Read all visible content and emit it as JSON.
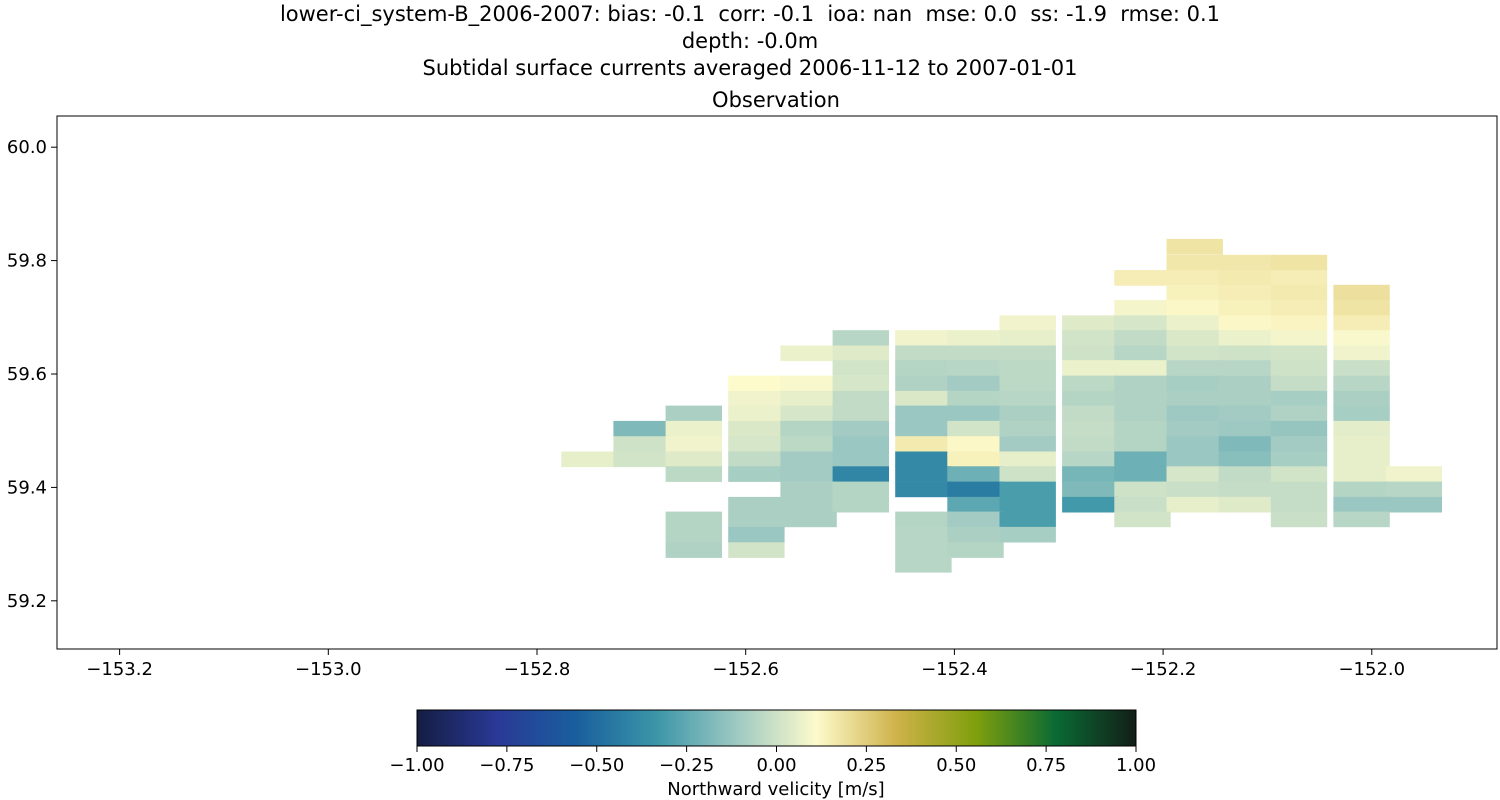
{
  "header": {
    "line1": "lower-ci_system-B_2006-2007: bias: -0.1  corr: -0.1  ioa: nan  mse: 0.0  ss: -1.9  rmse: 0.1",
    "line2": "depth: -0.0m",
    "line3": "Subtidal surface currents averaged 2006-11-12 to 2007-01-01"
  },
  "chart_data": {
    "type": "heatmap",
    "title": "Observation",
    "xlim": [
      -153.26,
      -151.88
    ],
    "ylim": [
      59.115,
      60.055
    ],
    "x_ticks": [
      -153.2,
      -153.0,
      -152.8,
      -152.6,
      -152.4,
      -152.2,
      -152.0
    ],
    "x_tick_labels": [
      "−153.2",
      "−153.0",
      "−152.8",
      "−152.6",
      "−152.4",
      "−152.2",
      "−152.0"
    ],
    "y_ticks": [
      59.2,
      59.4,
      59.6,
      59.8,
      60.0
    ],
    "y_tick_labels": [
      "59.2",
      "59.4",
      "59.6",
      "59.8",
      "60.0"
    ],
    "cell_width": 0.0535,
    "cell_height": 0.0265,
    "colorbar": {
      "label": "Northward velicity [m/s]",
      "vmin": -1.0,
      "vmax": 1.0,
      "ticks": [
        -1.0,
        -0.75,
        -0.5,
        -0.25,
        0.0,
        0.25,
        0.5,
        0.75,
        1.0
      ],
      "tick_labels": [
        "−1.00",
        "−0.75",
        "−0.50",
        "−0.25",
        "0.00",
        "0.25",
        "0.50",
        "0.75",
        "1.00"
      ],
      "stops": [
        "#141d43",
        "#2a3996",
        "#195f9e",
        "#3b96a8",
        "#9ec9c2",
        "#fdfacc",
        "#cfb24a",
        "#7f9f0c",
        "#0a6a34",
        "#131e17"
      ]
    },
    "cells": [
      {
        "x": -152.17,
        "y": 59.825,
        "v": 0.18
      },
      {
        "x": -152.17,
        "y": 59.797,
        "v": 0.17
      },
      {
        "x": -152.12,
        "y": 59.797,
        "v": 0.17
      },
      {
        "x": -152.07,
        "y": 59.797,
        "v": 0.18
      },
      {
        "x": -152.22,
        "y": 59.77,
        "v": 0.15
      },
      {
        "x": -152.17,
        "y": 59.77,
        "v": 0.15
      },
      {
        "x": -152.12,
        "y": 59.77,
        "v": 0.16
      },
      {
        "x": -152.07,
        "y": 59.77,
        "v": 0.15
      },
      {
        "x": -152.17,
        "y": 59.744,
        "v": 0.14
      },
      {
        "x": -152.12,
        "y": 59.744,
        "v": 0.15
      },
      {
        "x": -152.07,
        "y": 59.744,
        "v": 0.16
      },
      {
        "x": -152.01,
        "y": 59.744,
        "v": 0.19
      },
      {
        "x": -152.22,
        "y": 59.717,
        "v": 0.09
      },
      {
        "x": -152.17,
        "y": 59.717,
        "v": 0.12
      },
      {
        "x": -152.12,
        "y": 59.717,
        "v": 0.14
      },
      {
        "x": -152.07,
        "y": 59.717,
        "v": 0.15
      },
      {
        "x": -152.01,
        "y": 59.717,
        "v": 0.18
      },
      {
        "x": -152.33,
        "y": 59.69,
        "v": 0.08
      },
      {
        "x": -152.27,
        "y": 59.69,
        "v": 0.04
      },
      {
        "x": -152.22,
        "y": 59.69,
        "v": 0.02
      },
      {
        "x": -152.17,
        "y": 59.69,
        "v": 0.07
      },
      {
        "x": -152.12,
        "y": 59.69,
        "v": 0.12
      },
      {
        "x": -152.07,
        "y": 59.69,
        "v": 0.13
      },
      {
        "x": -152.01,
        "y": 59.69,
        "v": 0.15
      },
      {
        "x": -152.49,
        "y": 59.664,
        "v": -0.05
      },
      {
        "x": -152.43,
        "y": 59.664,
        "v": 0.08
      },
      {
        "x": -152.38,
        "y": 59.664,
        "v": 0.07
      },
      {
        "x": -152.33,
        "y": 59.664,
        "v": 0.06
      },
      {
        "x": -152.27,
        "y": 59.664,
        "v": 0.01
      },
      {
        "x": -152.22,
        "y": 59.664,
        "v": -0.03
      },
      {
        "x": -152.17,
        "y": 59.664,
        "v": 0.03
      },
      {
        "x": -152.12,
        "y": 59.664,
        "v": 0.07
      },
      {
        "x": -152.07,
        "y": 59.664,
        "v": 0.09
      },
      {
        "x": -152.01,
        "y": 59.664,
        "v": 0.1
      },
      {
        "x": -152.54,
        "y": 59.637,
        "v": 0.07
      },
      {
        "x": -152.49,
        "y": 59.637,
        "v": 0.04
      },
      {
        "x": -152.43,
        "y": 59.637,
        "v": -0.03
      },
      {
        "x": -152.38,
        "y": 59.637,
        "v": -0.03
      },
      {
        "x": -152.33,
        "y": 59.637,
        "v": -0.03
      },
      {
        "x": -152.27,
        "y": 59.637,
        "v": 0.0
      },
      {
        "x": -152.22,
        "y": 59.637,
        "v": -0.05
      },
      {
        "x": -152.17,
        "y": 59.637,
        "v": 0.01
      },
      {
        "x": -152.12,
        "y": 59.637,
        "v": 0.0
      },
      {
        "x": -152.07,
        "y": 59.637,
        "v": 0.01
      },
      {
        "x": -152.01,
        "y": 59.637,
        "v": 0.08
      },
      {
        "x": -152.49,
        "y": 59.611,
        "v": 0.01
      },
      {
        "x": -152.43,
        "y": 59.611,
        "v": -0.06
      },
      {
        "x": -152.38,
        "y": 59.611,
        "v": -0.05
      },
      {
        "x": -152.33,
        "y": 59.611,
        "v": -0.04
      },
      {
        "x": -152.27,
        "y": 59.611,
        "v": 0.07
      },
      {
        "x": -152.22,
        "y": 59.611,
        "v": 0.07
      },
      {
        "x": -152.17,
        "y": 59.611,
        "v": -0.05
      },
      {
        "x": -152.12,
        "y": 59.611,
        "v": -0.05
      },
      {
        "x": -152.07,
        "y": 59.611,
        "v": 0.0
      },
      {
        "x": -152.01,
        "y": 59.611,
        "v": -0.01
      },
      {
        "x": -152.59,
        "y": 59.584,
        "v": 0.11
      },
      {
        "x": -152.54,
        "y": 59.584,
        "v": 0.1
      },
      {
        "x": -152.49,
        "y": 59.584,
        "v": 0.02
      },
      {
        "x": -152.43,
        "y": 59.584,
        "v": -0.07
      },
      {
        "x": -152.38,
        "y": 59.584,
        "v": -0.1
      },
      {
        "x": -152.33,
        "y": 59.584,
        "v": -0.04
      },
      {
        "x": -152.27,
        "y": 59.584,
        "v": -0.04
      },
      {
        "x": -152.22,
        "y": 59.584,
        "v": -0.07
      },
      {
        "x": -152.17,
        "y": 59.584,
        "v": -0.09
      },
      {
        "x": -152.12,
        "y": 59.584,
        "v": -0.08
      },
      {
        "x": -152.07,
        "y": 59.584,
        "v": -0.02
      },
      {
        "x": -152.01,
        "y": 59.584,
        "v": -0.05
      },
      {
        "x": -152.59,
        "y": 59.557,
        "v": 0.08
      },
      {
        "x": -152.54,
        "y": 59.557,
        "v": 0.06
      },
      {
        "x": -152.49,
        "y": 59.557,
        "v": -0.03
      },
      {
        "x": -152.43,
        "y": 59.557,
        "v": 0.03
      },
      {
        "x": -152.38,
        "y": 59.557,
        "v": -0.06
      },
      {
        "x": -152.33,
        "y": 59.557,
        "v": -0.05
      },
      {
        "x": -152.27,
        "y": 59.557,
        "v": -0.06
      },
      {
        "x": -152.22,
        "y": 59.557,
        "v": -0.07
      },
      {
        "x": -152.17,
        "y": 59.557,
        "v": -0.08
      },
      {
        "x": -152.12,
        "y": 59.557,
        "v": -0.08
      },
      {
        "x": -152.07,
        "y": 59.557,
        "v": -0.09
      },
      {
        "x": -152.01,
        "y": 59.557,
        "v": -0.08
      },
      {
        "x": -152.65,
        "y": 59.531,
        "v": -0.08
      },
      {
        "x": -152.59,
        "y": 59.531,
        "v": 0.07
      },
      {
        "x": -152.54,
        "y": 59.531,
        "v": 0.02
      },
      {
        "x": -152.49,
        "y": 59.531,
        "v": -0.03
      },
      {
        "x": -152.43,
        "y": 59.531,
        "v": -0.12
      },
      {
        "x": -152.38,
        "y": 59.531,
        "v": -0.12
      },
      {
        "x": -152.33,
        "y": 59.531,
        "v": -0.08
      },
      {
        "x": -152.27,
        "y": 59.531,
        "v": -0.03
      },
      {
        "x": -152.22,
        "y": 59.531,
        "v": -0.07
      },
      {
        "x": -152.17,
        "y": 59.531,
        "v": -0.11
      },
      {
        "x": -152.12,
        "y": 59.531,
        "v": -0.1
      },
      {
        "x": -152.07,
        "y": 59.531,
        "v": -0.07
      },
      {
        "x": -152.01,
        "y": 59.531,
        "v": -0.09
      },
      {
        "x": -152.7,
        "y": 59.504,
        "v": -0.18
      },
      {
        "x": -152.65,
        "y": 59.504,
        "v": 0.07
      },
      {
        "x": -152.59,
        "y": 59.504,
        "v": 0.03
      },
      {
        "x": -152.54,
        "y": 59.504,
        "v": -0.06
      },
      {
        "x": -152.49,
        "y": 59.504,
        "v": -0.1
      },
      {
        "x": -152.43,
        "y": 59.504,
        "v": -0.12
      },
      {
        "x": -152.38,
        "y": 59.504,
        "v": 0.01
      },
      {
        "x": -152.33,
        "y": 59.504,
        "v": -0.07
      },
      {
        "x": -152.27,
        "y": 59.504,
        "v": -0.02
      },
      {
        "x": -152.22,
        "y": 59.504,
        "v": -0.06
      },
      {
        "x": -152.17,
        "y": 59.504,
        "v": -0.1
      },
      {
        "x": -152.12,
        "y": 59.504,
        "v": -0.11
      },
      {
        "x": -152.07,
        "y": 59.504,
        "v": -0.13
      },
      {
        "x": -152.01,
        "y": 59.504,
        "v": 0.05
      },
      {
        "x": -152.7,
        "y": 59.477,
        "v": 0.0
      },
      {
        "x": -152.65,
        "y": 59.477,
        "v": 0.08
      },
      {
        "x": -152.59,
        "y": 59.477,
        "v": 0.02
      },
      {
        "x": -152.54,
        "y": 59.477,
        "v": -0.04
      },
      {
        "x": -152.49,
        "y": 59.477,
        "v": -0.12
      },
      {
        "x": -152.43,
        "y": 59.477,
        "v": 0.16
      },
      {
        "x": -152.38,
        "y": 59.477,
        "v": 0.12
      },
      {
        "x": -152.33,
        "y": 59.477,
        "v": -0.1
      },
      {
        "x": -152.27,
        "y": 59.477,
        "v": -0.03
      },
      {
        "x": -152.22,
        "y": 59.477,
        "v": -0.06
      },
      {
        "x": -152.17,
        "y": 59.477,
        "v": -0.12
      },
      {
        "x": -152.12,
        "y": 59.477,
        "v": -0.18
      },
      {
        "x": -152.07,
        "y": 59.477,
        "v": -0.1
      },
      {
        "x": -152.01,
        "y": 59.477,
        "v": 0.06
      },
      {
        "x": -152.75,
        "y": 59.45,
        "v": 0.06
      },
      {
        "x": -152.7,
        "y": 59.45,
        "v": 0.01
      },
      {
        "x": -152.65,
        "y": 59.45,
        "v": 0.04
      },
      {
        "x": -152.59,
        "y": 59.45,
        "v": -0.03
      },
      {
        "x": -152.54,
        "y": 59.45,
        "v": -0.1
      },
      {
        "x": -152.49,
        "y": 59.45,
        "v": -0.12
      },
      {
        "x": -152.43,
        "y": 59.45,
        "v": -0.38
      },
      {
        "x": -152.38,
        "y": 59.45,
        "v": 0.14
      },
      {
        "x": -152.33,
        "y": 59.45,
        "v": 0.06
      },
      {
        "x": -152.27,
        "y": 59.45,
        "v": -0.05
      },
      {
        "x": -152.22,
        "y": 59.45,
        "v": -0.22
      },
      {
        "x": -152.17,
        "y": 59.45,
        "v": -0.12
      },
      {
        "x": -152.12,
        "y": 59.45,
        "v": -0.16
      },
      {
        "x": -152.07,
        "y": 59.45,
        "v": -0.09
      },
      {
        "x": -152.01,
        "y": 59.45,
        "v": 0.06
      },
      {
        "x": -152.65,
        "y": 59.424,
        "v": -0.04
      },
      {
        "x": -152.59,
        "y": 59.424,
        "v": -0.09
      },
      {
        "x": -152.54,
        "y": 59.424,
        "v": -0.1
      },
      {
        "x": -152.49,
        "y": 59.424,
        "v": -0.4
      },
      {
        "x": -152.43,
        "y": 59.424,
        "v": -0.38
      },
      {
        "x": -152.38,
        "y": 59.424,
        "v": -0.22
      },
      {
        "x": -152.33,
        "y": 59.424,
        "v": 0.0
      },
      {
        "x": -152.27,
        "y": 59.424,
        "v": -0.2
      },
      {
        "x": -152.22,
        "y": 59.424,
        "v": -0.22
      },
      {
        "x": -152.17,
        "y": 59.424,
        "v": 0.02
      },
      {
        "x": -152.12,
        "y": 59.424,
        "v": -0.03
      },
      {
        "x": -152.07,
        "y": 59.424,
        "v": 0.01
      },
      {
        "x": -152.01,
        "y": 59.424,
        "v": 0.06
      },
      {
        "x": -151.96,
        "y": 59.424,
        "v": 0.08
      },
      {
        "x": -152.54,
        "y": 59.397,
        "v": -0.08
      },
      {
        "x": -152.49,
        "y": 59.397,
        "v": -0.06
      },
      {
        "x": -152.43,
        "y": 59.397,
        "v": -0.38
      },
      {
        "x": -152.38,
        "y": 59.397,
        "v": -0.44
      },
      {
        "x": -152.33,
        "y": 59.397,
        "v": -0.3
      },
      {
        "x": -152.27,
        "y": 59.397,
        "v": -0.18
      },
      {
        "x": -152.22,
        "y": 59.397,
        "v": 0.0
      },
      {
        "x": -152.17,
        "y": 59.397,
        "v": -0.01
      },
      {
        "x": -152.12,
        "y": 59.397,
        "v": -0.02
      },
      {
        "x": -152.07,
        "y": 59.397,
        "v": -0.02
      },
      {
        "x": -152.01,
        "y": 59.397,
        "v": -0.06
      },
      {
        "x": -151.96,
        "y": 59.397,
        "v": -0.05
      },
      {
        "x": -152.59,
        "y": 59.37,
        "v": -0.08
      },
      {
        "x": -152.54,
        "y": 59.37,
        "v": -0.08
      },
      {
        "x": -152.49,
        "y": 59.37,
        "v": -0.06
      },
      {
        "x": -152.38,
        "y": 59.37,
        "v": -0.26
      },
      {
        "x": -152.33,
        "y": 59.37,
        "v": -0.3
      },
      {
        "x": -152.27,
        "y": 59.37,
        "v": -0.32
      },
      {
        "x": -152.22,
        "y": 59.37,
        "v": -0.01
      },
      {
        "x": -152.17,
        "y": 59.37,
        "v": 0.06
      },
      {
        "x": -152.12,
        "y": 59.37,
        "v": 0.04
      },
      {
        "x": -152.07,
        "y": 59.37,
        "v": -0.02
      },
      {
        "x": -152.01,
        "y": 59.37,
        "v": -0.12
      },
      {
        "x": -151.96,
        "y": 59.37,
        "v": -0.12
      },
      {
        "x": -152.65,
        "y": 59.344,
        "v": -0.06
      },
      {
        "x": -152.59,
        "y": 59.344,
        "v": -0.08
      },
      {
        "x": -152.54,
        "y": 59.344,
        "v": -0.08
      },
      {
        "x": -152.43,
        "y": 59.344,
        "v": -0.06
      },
      {
        "x": -152.38,
        "y": 59.344,
        "v": -0.1
      },
      {
        "x": -152.33,
        "y": 59.344,
        "v": -0.3
      },
      {
        "x": -152.22,
        "y": 59.344,
        "v": 0.01
      },
      {
        "x": -152.07,
        "y": 59.344,
        "v": -0.01
      },
      {
        "x": -152.01,
        "y": 59.344,
        "v": -0.05
      },
      {
        "x": -152.65,
        "y": 59.317,
        "v": -0.06
      },
      {
        "x": -152.59,
        "y": 59.317,
        "v": -0.12
      },
      {
        "x": -152.43,
        "y": 59.317,
        "v": -0.05
      },
      {
        "x": -152.38,
        "y": 59.317,
        "v": -0.08
      },
      {
        "x": -152.33,
        "y": 59.317,
        "v": -0.09
      },
      {
        "x": -152.65,
        "y": 59.29,
        "v": -0.07
      },
      {
        "x": -152.59,
        "y": 59.29,
        "v": 0.01
      },
      {
        "x": -152.43,
        "y": 59.29,
        "v": -0.05
      },
      {
        "x": -152.38,
        "y": 59.29,
        "v": -0.06
      },
      {
        "x": -152.43,
        "y": 59.264,
        "v": -0.05
      }
    ]
  }
}
